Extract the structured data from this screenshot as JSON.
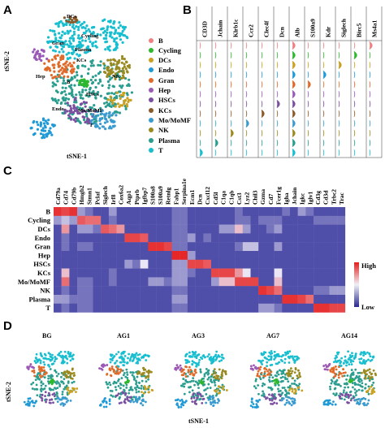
{
  "panels": {
    "a": "A",
    "b": "B",
    "c": "C",
    "d": "D"
  },
  "cell_types": [
    "B",
    "Cycling",
    "DCs",
    "Endo",
    "Gran",
    "Hep",
    "HSCs",
    "KCs",
    "Mo/MoMF",
    "NK",
    "Plasma",
    "T"
  ],
  "colors": [
    "#f08080",
    "#2db82d",
    "#c9a020",
    "#1f9ad6",
    "#e06a2a",
    "#9b59b6",
    "#7b4fa0",
    "#8b5a2b",
    "#3a9bd0",
    "#9a8a20",
    "#2a9d8f",
    "#17becf"
  ],
  "tsne": {
    "ylabel": "tSNE-2",
    "xlabel": "tSNE-1",
    "cluster_labels": [
      "DCs",
      "Cycling",
      "Gran",
      "Plasma",
      "KCs",
      "Hep",
      "NK",
      "B",
      "Endo",
      "Mo/MoMF",
      "T",
      "HSCs"
    ]
  },
  "legend_items": [
    "B",
    "Cycling",
    "DCs",
    "Endo",
    "Gran",
    "Hep",
    "HSCs",
    "KCs",
    "Mo/MoMF",
    "NK",
    "Plasma",
    "T"
  ],
  "violin": {
    "genes": [
      "CD3D",
      "Jchain",
      "Klrb1c",
      "Ccr2",
      "Clec4f",
      "Dcn",
      "Alb",
      "S100a9",
      "Kdr",
      "Siglech",
      "Birc5",
      "Ms4a1"
    ]
  },
  "chart_data": [
    {
      "type": "heatmap",
      "title": "",
      "x": [
        "Cd79a",
        "Cd74",
        "Cd79b",
        "Hmgb2",
        "Stmn1",
        "Pclaf",
        "Siglech",
        "Irf8",
        "Cox6a2",
        "Aqp1",
        "Ptprb",
        "Igfbp7",
        "S100a8",
        "S100a9",
        "Retnlg",
        "Fabp1",
        "Serpina1e",
        "Ecm1",
        "Dcn",
        "Cxcl12",
        "Cd5l",
        "C1qa",
        "C1qb",
        "Cst3",
        "Lyz2",
        "Chil3",
        "Gzma",
        "Cd7",
        "Fcer1g",
        "Igha",
        "Jchain",
        "Igkc",
        "Iglv1",
        "Cd3g",
        "Cd3d",
        "Trbc2",
        "Trac"
      ],
      "y": [
        "B",
        "Cycling",
        "DCs",
        "Endo",
        "Gran",
        "Hep",
        "HSCs",
        "KCs",
        "Mo/MoMF",
        "NK",
        "Plasma",
        "T"
      ],
      "colorbar": {
        "high": "High",
        "low": "Low"
      },
      "values": [
        [
          0.95,
          0.9,
          0.95,
          0.3,
          0.2,
          0.1,
          0.1,
          0.3,
          0.1,
          0.1,
          0.1,
          0.1,
          0.1,
          0.1,
          0.1,
          0.2,
          0.2,
          0.1,
          0.1,
          0.1,
          0.1,
          0.1,
          0.1,
          0.2,
          0.1,
          0.1,
          0.1,
          0.1,
          0.1,
          0.2,
          0.1,
          0.3,
          0.2,
          0.1,
          0.1,
          0.1,
          0.1
        ],
        [
          0.3,
          0.4,
          0.3,
          0.85,
          0.8,
          0.8,
          0.1,
          0.2,
          0.1,
          0.1,
          0.1,
          0.1,
          0.1,
          0.1,
          0.1,
          0.2,
          0.2,
          0.1,
          0.1,
          0.1,
          0.1,
          0.1,
          0.1,
          0.2,
          0.2,
          0.1,
          0.2,
          0.2,
          0.2,
          0.1,
          0.1,
          0.1,
          0.1,
          0.2,
          0.2,
          0.2,
          0.2
        ],
        [
          0.1,
          0.7,
          0.1,
          0.3,
          0.3,
          0.2,
          0.85,
          0.8,
          0.7,
          0.1,
          0.1,
          0.1,
          0.1,
          0.1,
          0.1,
          0.2,
          0.2,
          0.1,
          0.1,
          0.1,
          0.1,
          0.3,
          0.3,
          0.6,
          0.3,
          0.1,
          0.1,
          0.2,
          0.3,
          0.1,
          0.1,
          0.1,
          0.1,
          0.1,
          0.1,
          0.1,
          0.1
        ],
        [
          0.1,
          0.2,
          0.1,
          0.1,
          0.1,
          0.1,
          0.1,
          0.1,
          0.1,
          0.9,
          0.9,
          0.85,
          0.1,
          0.1,
          0.1,
          0.2,
          0.2,
          0.3,
          0.1,
          0.2,
          0.1,
          0.1,
          0.1,
          0.1,
          0.1,
          0.1,
          0.1,
          0.1,
          0.1,
          0.1,
          0.1,
          0.1,
          0.1,
          0.1,
          0.1,
          0.1,
          0.1
        ],
        [
          0.1,
          0.2,
          0.1,
          0.2,
          0.2,
          0.1,
          0.1,
          0.1,
          0.1,
          0.1,
          0.1,
          0.1,
          0.95,
          0.95,
          0.9,
          0.2,
          0.2,
          0.1,
          0.1,
          0.1,
          0.1,
          0.1,
          0.1,
          0.2,
          0.4,
          0.4,
          0.1,
          0.1,
          0.3,
          0.1,
          0.1,
          0.1,
          0.1,
          0.1,
          0.1,
          0.1,
          0.1
        ],
        [
          0.1,
          0.1,
          0.1,
          0.1,
          0.1,
          0.1,
          0.1,
          0.1,
          0.1,
          0.1,
          0.1,
          0.1,
          0.1,
          0.1,
          0.1,
          0.98,
          0.98,
          0.3,
          0.1,
          0.1,
          0.1,
          0.1,
          0.1,
          0.1,
          0.1,
          0.1,
          0.1,
          0.1,
          0.1,
          0.1,
          0.1,
          0.1,
          0.1,
          0.1,
          0.1,
          0.1,
          0.1
        ],
        [
          0.1,
          0.1,
          0.1,
          0.1,
          0.1,
          0.1,
          0.1,
          0.1,
          0.1,
          0.3,
          0.2,
          0.5,
          0.1,
          0.1,
          0.1,
          0.3,
          0.3,
          0.9,
          0.9,
          0.85,
          0.1,
          0.1,
          0.1,
          0.1,
          0.1,
          0.1,
          0.1,
          0.1,
          0.1,
          0.1,
          0.1,
          0.1,
          0.1,
          0.1,
          0.1,
          0.1,
          0.1
        ],
        [
          0.1,
          0.6,
          0.1,
          0.1,
          0.1,
          0.1,
          0.1,
          0.2,
          0.1,
          0.1,
          0.1,
          0.1,
          0.1,
          0.1,
          0.1,
          0.3,
          0.3,
          0.2,
          0.1,
          0.1,
          0.9,
          0.9,
          0.9,
          0.7,
          0.5,
          0.1,
          0.1,
          0.1,
          0.5,
          0.1,
          0.1,
          0.1,
          0.1,
          0.1,
          0.1,
          0.1,
          0.1
        ],
        [
          0.1,
          0.8,
          0.1,
          0.2,
          0.2,
          0.1,
          0.1,
          0.2,
          0.1,
          0.1,
          0.1,
          0.1,
          0.3,
          0.3,
          0.2,
          0.3,
          0.3,
          0.1,
          0.1,
          0.1,
          0.3,
          0.6,
          0.6,
          0.9,
          0.9,
          0.9,
          0.1,
          0.1,
          0.6,
          0.1,
          0.1,
          0.1,
          0.1,
          0.1,
          0.1,
          0.1,
          0.1
        ],
        [
          0.1,
          0.2,
          0.1,
          0.2,
          0.2,
          0.1,
          0.1,
          0.1,
          0.1,
          0.1,
          0.1,
          0.1,
          0.1,
          0.1,
          0.1,
          0.2,
          0.2,
          0.1,
          0.1,
          0.1,
          0.1,
          0.1,
          0.1,
          0.1,
          0.1,
          0.1,
          0.95,
          0.9,
          0.8,
          0.1,
          0.1,
          0.1,
          0.1,
          0.2,
          0.2,
          0.3,
          0.3
        ],
        [
          0.3,
          0.3,
          0.2,
          0.2,
          0.2,
          0.1,
          0.1,
          0.1,
          0.1,
          0.1,
          0.1,
          0.1,
          0.1,
          0.1,
          0.1,
          0.3,
          0.3,
          0.1,
          0.1,
          0.1,
          0.1,
          0.1,
          0.1,
          0.1,
          0.1,
          0.1,
          0.1,
          0.1,
          0.1,
          0.95,
          0.95,
          0.9,
          0.8,
          0.1,
          0.1,
          0.1,
          0.1
        ],
        [
          0.1,
          0.2,
          0.1,
          0.2,
          0.2,
          0.1,
          0.1,
          0.1,
          0.1,
          0.1,
          0.1,
          0.1,
          0.1,
          0.1,
          0.1,
          0.2,
          0.2,
          0.1,
          0.1,
          0.1,
          0.1,
          0.1,
          0.1,
          0.1,
          0.1,
          0.1,
          0.3,
          0.3,
          0.2,
          0.1,
          0.1,
          0.1,
          0.1,
          0.95,
          0.95,
          0.9,
          0.9
        ]
      ]
    }
  ],
  "samples": {
    "titles": [
      "BG",
      "AG1",
      "AG3",
      "AG7",
      "AG14"
    ],
    "ylabel": "tSNE-2",
    "xlabel": "tSNE-1"
  }
}
